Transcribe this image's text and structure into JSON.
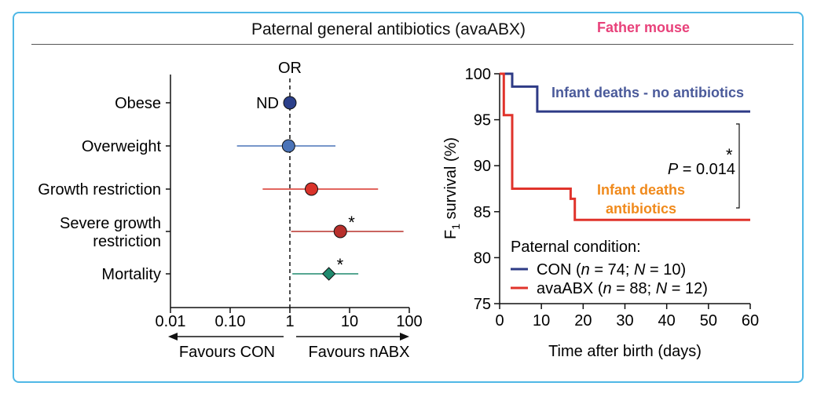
{
  "header": {
    "title": "Paternal general antibiotics (avaABX)",
    "tag": "Father mouse"
  },
  "chart_data": [
    {
      "type": "forest",
      "xlabel": "OR",
      "x_scale": "log",
      "xlim": [
        0.01,
        100
      ],
      "ticks": [
        "0.01",
        "0.10",
        "1",
        "10",
        "100"
      ],
      "tick_values": [
        0.01,
        0.1,
        1,
        10,
        100
      ],
      "reference": 1,
      "favours_left": "Favours CON",
      "favours_right": "Favours nABX",
      "rows": [
        {
          "name": "obese",
          "label": [
            "Obese"
          ],
          "or": 1.0,
          "lo": null,
          "hi": null,
          "marker": "circle",
          "color": "#2b3f8a",
          "annotation": "ND",
          "star": false
        },
        {
          "name": "overweight",
          "label": [
            "Overweight"
          ],
          "or": 0.95,
          "lo": 0.13,
          "hi": 5.8,
          "marker": "circle",
          "color": "#4a73b8",
          "annotation": "",
          "star": false
        },
        {
          "name": "growth-restriction",
          "label": [
            "Growth restriction"
          ],
          "or": 2.3,
          "lo": 0.35,
          "hi": 30,
          "marker": "circle",
          "color": "#d9332a",
          "annotation": "",
          "star": false
        },
        {
          "name": "severe-growth-restriction",
          "label": [
            "Severe growth",
            "restriction"
          ],
          "or": 7.0,
          "lo": 1.05,
          "hi": 80,
          "marker": "circle",
          "color": "#b8302c",
          "annotation": "",
          "star": true
        },
        {
          "name": "mortality",
          "label": [
            "Mortality"
          ],
          "or": 4.5,
          "lo": 1.1,
          "hi": 14,
          "marker": "diamond",
          "color": "#1f8a6e",
          "annotation": "",
          "star": true
        }
      ]
    },
    {
      "type": "line",
      "subtype": "survival-step",
      "ylabel_main": "F",
      "ylabel_sub": "1",
      "ylabel_rest": " survival (%)",
      "xlabel": "Time after birth (days)",
      "xlim": [
        0,
        60
      ],
      "ylim": [
        75,
        100
      ],
      "x_ticks": [
        "0",
        "10",
        "20",
        "30",
        "40",
        "50",
        "60"
      ],
      "y_ticks": [
        "75",
        "80",
        "85",
        "90",
        "95",
        "100"
      ],
      "series": [
        {
          "name": "CON",
          "color": "#2e3b86",
          "points": [
            [
              0,
              100
            ],
            [
              3,
              100
            ],
            [
              3,
              98.6
            ],
            [
              9,
              98.6
            ],
            [
              9,
              95.9
            ],
            [
              60,
              95.9
            ]
          ]
        },
        {
          "name": "avaABX",
          "color": "#e0332b",
          "points": [
            [
              0,
              100
            ],
            [
              1,
              100
            ],
            [
              1,
              95.5
            ],
            [
              3,
              95.5
            ],
            [
              3,
              87.5
            ],
            [
              17,
              87.5
            ],
            [
              17,
              86.4
            ],
            [
              18,
              86.4
            ],
            [
              18,
              84.1
            ],
            [
              60,
              84.1
            ]
          ]
        }
      ],
      "annotations": {
        "con_note": "Infant deaths - no antibiotics",
        "con_note_color": "#4a5a9a",
        "abx_note_1": "Infant deaths",
        "abx_note_2": "antibiotics",
        "abx_note_color": "#f08a1c",
        "star": "*",
        "p_label": "P",
        "p_value": " = 0.014"
      },
      "legend": {
        "title": "Paternal condition:",
        "con": {
          "name": "CON",
          "open": " (",
          "n_label": "n",
          "n_value": " = 74; ",
          "N_label": "N",
          "N_value": " = 10)"
        },
        "abx": {
          "name": "avaABX",
          "open": " (",
          "n_label": "n",
          "n_value": " = 88; ",
          "N_label": "N",
          "N_value": " = 12)"
        }
      }
    }
  ]
}
